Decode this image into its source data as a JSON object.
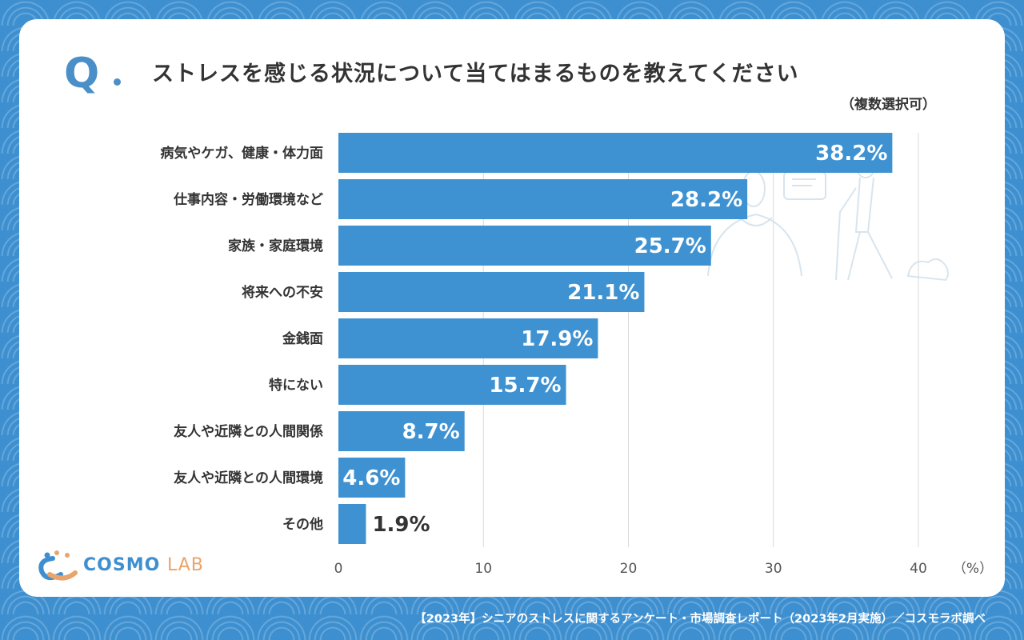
{
  "header": {
    "q_mark": "Q",
    "question": "ストレスを感じる状況について当てはまるものを教えてください",
    "note": "（複数選択可）"
  },
  "footer": {
    "source": "【2023年】シニアのストレスに関するアンケート・市場調査レポート（2023年2月実施）／コスモラボ調べ"
  },
  "logo": {
    "main": "COSMO",
    "sub": "LAB"
  },
  "colors": {
    "bar": "#3f92d2",
    "grid": "#d9d9d9",
    "background": "#3d8fd0"
  },
  "chart_data": {
    "type": "bar",
    "orientation": "horizontal",
    "categories": [
      "病気やケガ、健康・体力面",
      "仕事内容・労働環境など",
      "家族・家庭環境",
      "将来への不安",
      "金銭面",
      "特にない",
      "友人や近隣との人間関係",
      "友人や近隣との人間環境",
      "その他"
    ],
    "values": [
      38.2,
      28.2,
      25.7,
      21.1,
      17.9,
      15.7,
      8.7,
      4.6,
      1.9
    ],
    "value_labels": [
      "38.2%",
      "28.2%",
      "25.7%",
      "21.1%",
      "17.9%",
      "15.7%",
      "8.7%",
      "4.6%",
      "1.9%"
    ],
    "xlim": [
      0,
      40
    ],
    "x_ticks": [
      "0",
      "10",
      "20",
      "30",
      "40"
    ],
    "unit_label": "（%）",
    "grid": true
  }
}
